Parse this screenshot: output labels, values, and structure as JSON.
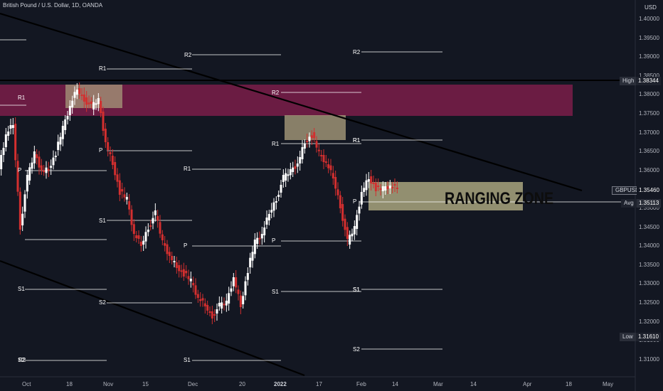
{
  "header": {
    "symbol_title": "British Pound / U.S. Dollar, 1D, OANDA",
    "currency": "USD"
  },
  "annotation": {
    "text": "RANGING ZONE"
  },
  "price_axis": {
    "ticks": [
      "1.40000",
      "1.39500",
      "1.39000",
      "1.38500",
      "1.38000",
      "1.37500",
      "1.37000",
      "1.36500",
      "1.36000",
      "1.35500",
      "1.35000",
      "1.34500",
      "1.34000",
      "1.33500",
      "1.33000",
      "1.32500",
      "1.32000",
      "1.31500",
      "1.31000"
    ]
  },
  "time_axis": {
    "labels": [
      "Oct",
      "18",
      "Nov",
      "15",
      "Dec",
      "20",
      "2022",
      "17",
      "Feb",
      "14",
      "Mar",
      "14",
      "Apr",
      "18",
      "May"
    ]
  },
  "price_badges": {
    "high": {
      "label": "High",
      "value": "1.38344"
    },
    "symbol": {
      "label": "GBPUSD",
      "value": "1.35460"
    },
    "avg": {
      "label": "Avg",
      "value": "1.35113"
    },
    "low": {
      "label": "Low",
      "value": "1.31610"
    }
  },
  "pivot_labels": [
    "R2",
    "R1",
    "R1",
    "P",
    "S1",
    "S2",
    "R2",
    "R1",
    "P",
    "S1",
    "S1",
    "R2",
    "R1",
    "P",
    "S1",
    "S2",
    "P",
    "R1",
    "S1",
    "R2",
    "R1",
    "P",
    "S1",
    "S2"
  ],
  "colors": {
    "background": "#131722",
    "bull_candle": "#ffffff",
    "bear_candle": "#d32f2f",
    "resistance_zone": "#7b1d49",
    "range_zone": "#8b8868",
    "trend_line": "#000000"
  }
}
